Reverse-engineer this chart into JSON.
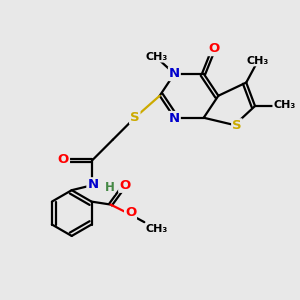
{
  "bg_color": "#e8e8e8",
  "atom_colors": {
    "C": "#000000",
    "N": "#0000cc",
    "O": "#ff0000",
    "S": "#ccaa00",
    "H": "#448844"
  },
  "bond_color": "#000000",
  "bond_width": 1.6,
  "figsize": [
    3.0,
    3.0
  ],
  "dpi": 100,
  "xlim": [
    0,
    10
  ],
  "ylim": [
    0,
    10
  ]
}
